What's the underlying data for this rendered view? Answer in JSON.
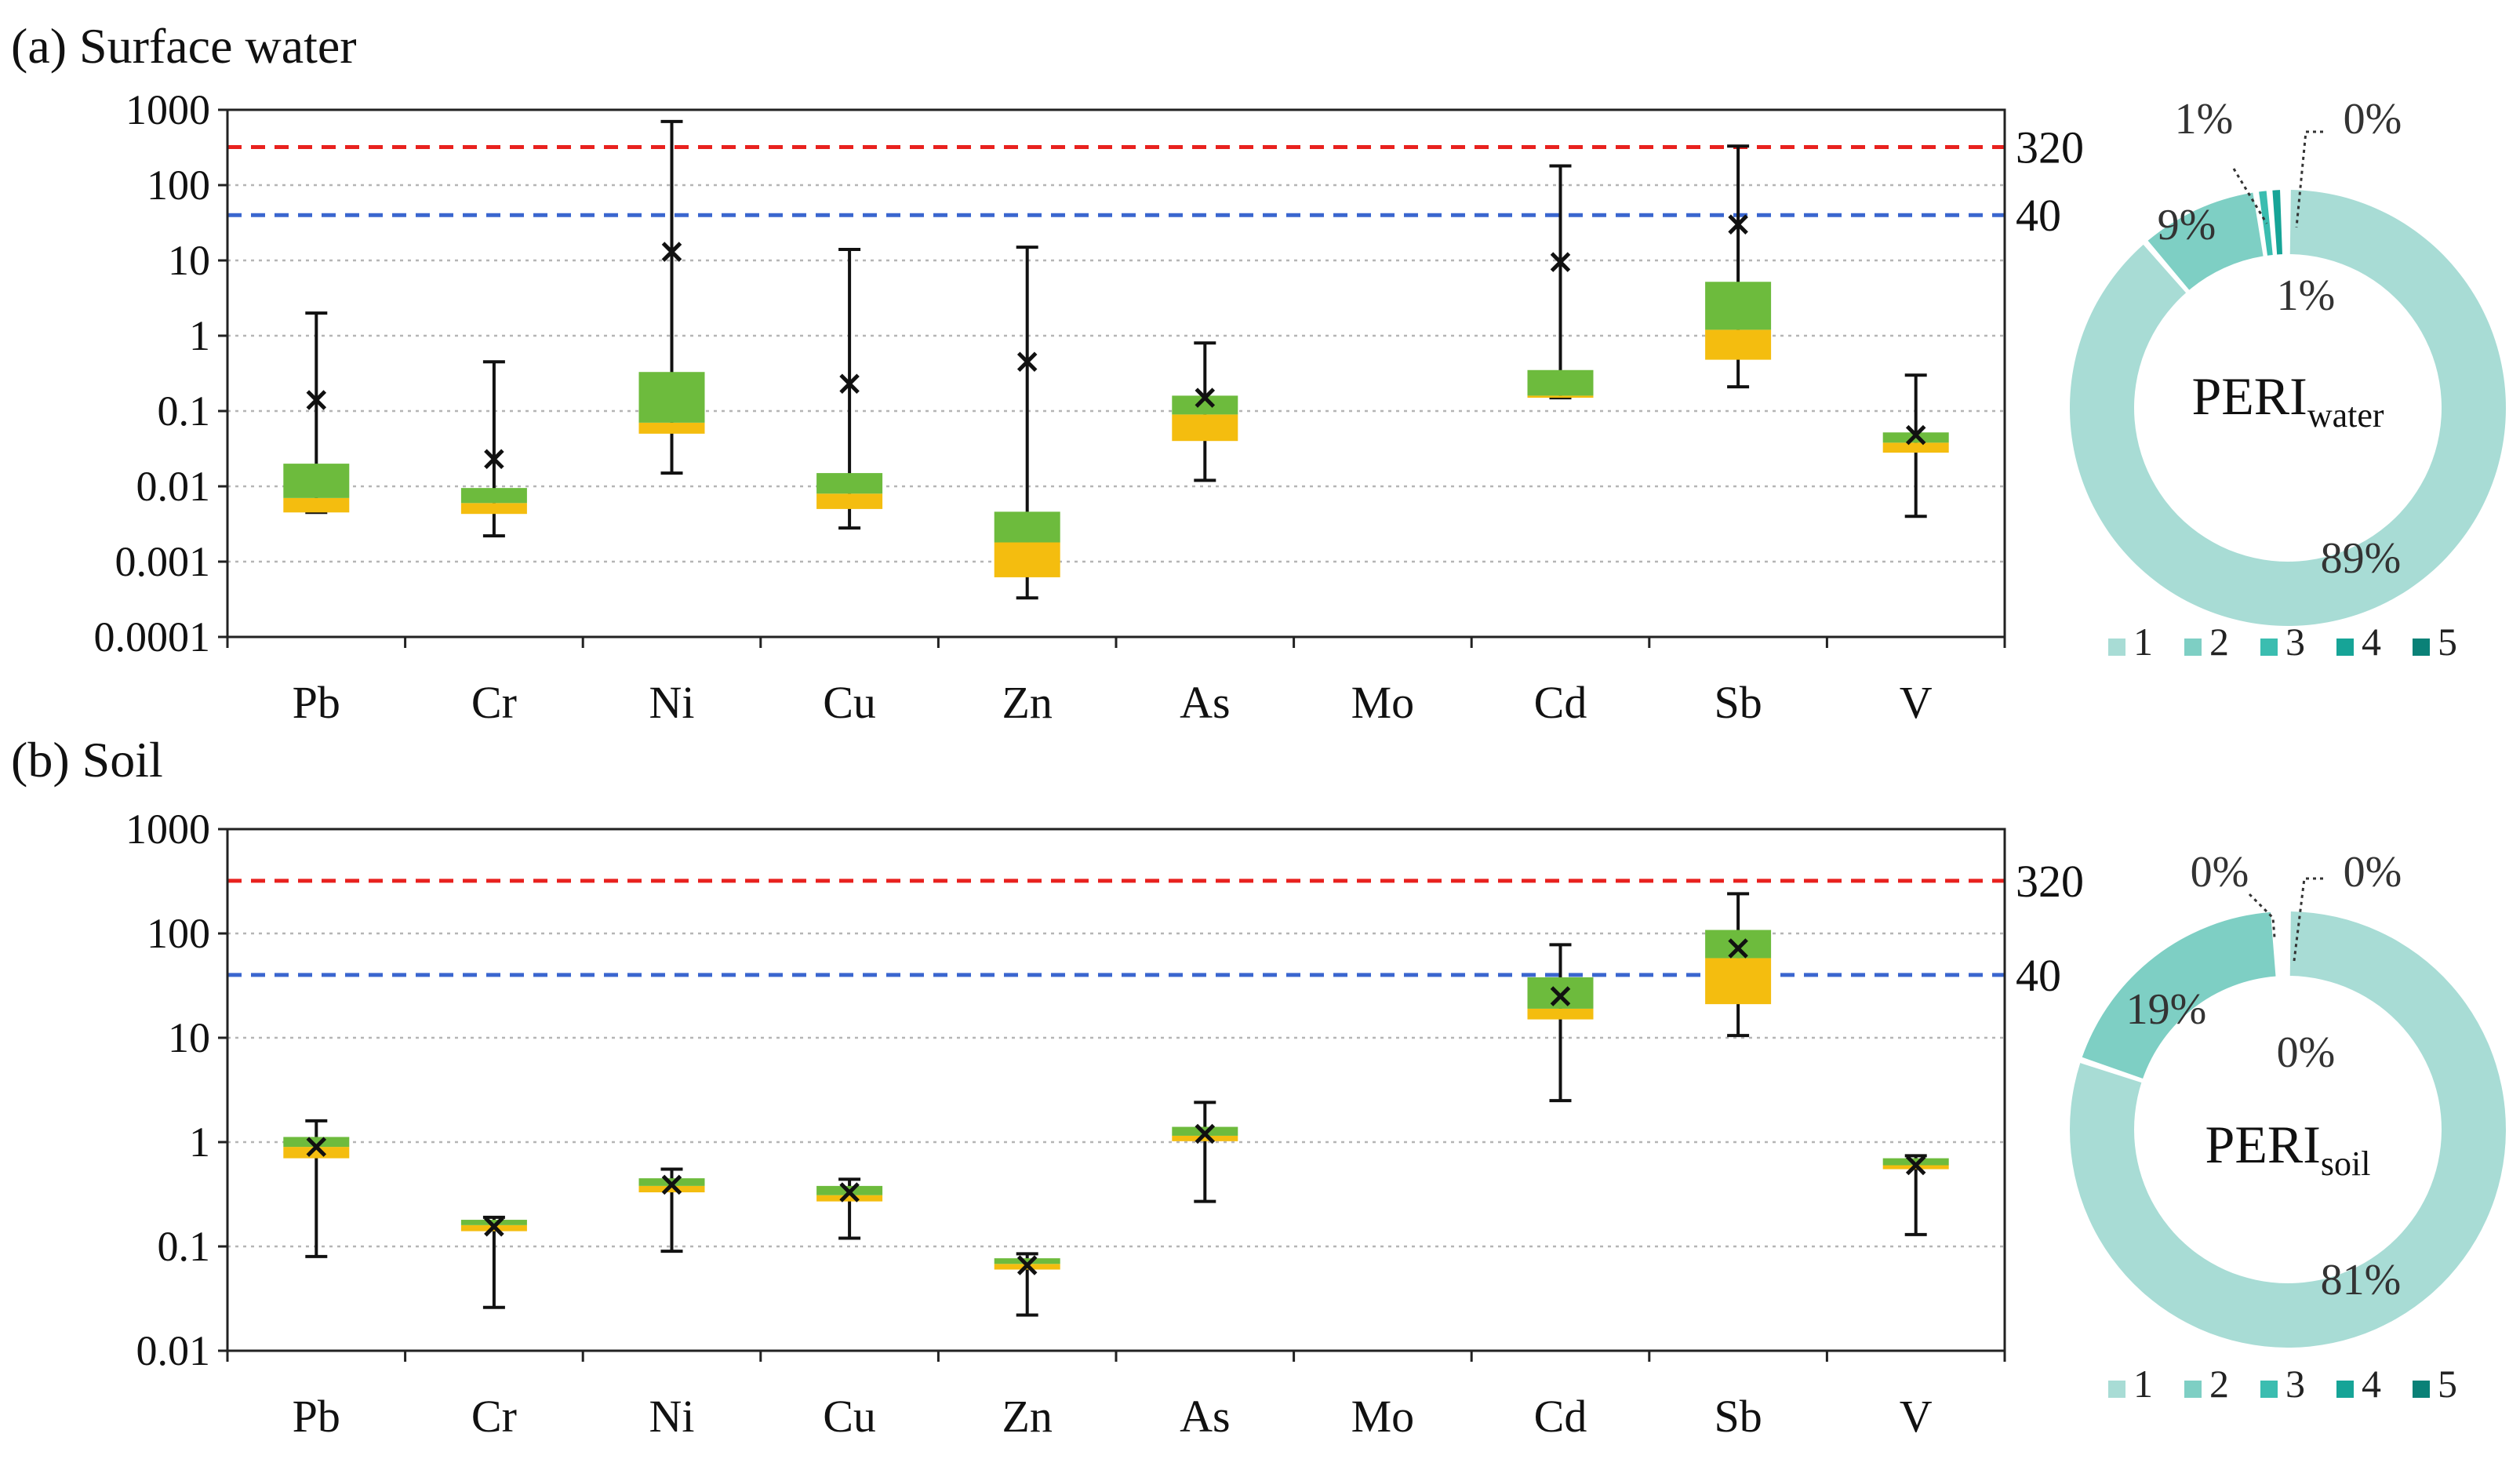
{
  "colors": {
    "box_upper": "#6dbb3d",
    "box_lower": "#f4bd0f",
    "red_line": "#e8211e",
    "blue_line": "#3a66cf",
    "grid": "#b5b5b5",
    "pie": [
      "#a8dcd5",
      "#7ecfc4",
      "#3bbdb0",
      "#16a497",
      "#0a8177"
    ]
  },
  "chart_data": [
    {
      "id": "water",
      "type": "box",
      "title": "(a) Surface water",
      "yscale": "log",
      "ylim": [
        0.0001,
        1000
      ],
      "yticks": [
        "0.0001",
        "0.001",
        "0.01",
        "0.1",
        "1",
        "10",
        "100",
        "1000"
      ],
      "categories": [
        "Pb",
        "Cr",
        "Ni",
        "Cu",
        "Zn",
        "As",
        "Mo",
        "Cd",
        "Sb",
        "V"
      ],
      "thresholds": [
        {
          "label": "320",
          "value": 320,
          "color": "red"
        },
        {
          "label": "40",
          "value": 40,
          "color": "blue"
        }
      ],
      "boxes": [
        {
          "cat": "Pb",
          "min": 0.0045,
          "q1": 0.0045,
          "median": 0.007,
          "q3": 0.02,
          "max": 2.0,
          "mean": 0.14
        },
        {
          "cat": "Cr",
          "min": 0.0022,
          "q1": 0.0043,
          "median": 0.006,
          "q3": 0.0095,
          "max": 0.45,
          "mean": 0.023
        },
        {
          "cat": "Ni",
          "min": 0.015,
          "q1": 0.05,
          "median": 0.07,
          "q3": 0.33,
          "max": 700,
          "mean": 13
        },
        {
          "cat": "Cu",
          "min": 0.0028,
          "q1": 0.005,
          "median": 0.008,
          "q3": 0.015,
          "max": 14,
          "mean": 0.23
        },
        {
          "cat": "Zn",
          "min": 0.00033,
          "q1": 0.00062,
          "median": 0.0018,
          "q3": 0.0046,
          "max": 15,
          "mean": 0.45
        },
        {
          "cat": "As",
          "min": 0.012,
          "q1": 0.04,
          "median": 0.09,
          "q3": 0.16,
          "max": 0.8,
          "mean": 0.15
        },
        {
          "cat": "Mo",
          "min": null,
          "q1": null,
          "median": null,
          "q3": null,
          "max": null,
          "mean": null
        },
        {
          "cat": "Cd",
          "min": 0.15,
          "q1": 0.15,
          "median": 0.16,
          "q3": 0.35,
          "max": 180,
          "mean": 9.5
        },
        {
          "cat": "Sb",
          "min": 0.21,
          "q1": 0.48,
          "median": 1.2,
          "q3": 5.2,
          "max": 330,
          "mean": 30
        },
        {
          "cat": "V",
          "min": 0.004,
          "q1": 0.028,
          "median": 0.038,
          "q3": 0.052,
          "max": 0.3,
          "mean": 0.048
        }
      ],
      "pie": {
        "label_main": "PERI",
        "label_sub": "water",
        "values": [
          89,
          9,
          1,
          1,
          0
        ],
        "labels": [
          "89%",
          "9%",
          "1%",
          "1%",
          "0%"
        ],
        "legend": [
          "1",
          "2",
          "3",
          "4",
          "5"
        ]
      }
    },
    {
      "id": "soil",
      "type": "box",
      "title": "(b) Soil",
      "yscale": "log",
      "ylim": [
        0.01,
        1000
      ],
      "yticks": [
        "0.01",
        "0.1",
        "1",
        "10",
        "100",
        "1000"
      ],
      "categories": [
        "Pb",
        "Cr",
        "Ni",
        "Cu",
        "Zn",
        "As",
        "Mo",
        "Cd",
        "Sb",
        "V"
      ],
      "thresholds": [
        {
          "label": "320",
          "value": 320,
          "color": "red"
        },
        {
          "label": "40",
          "value": 40,
          "color": "blue"
        }
      ],
      "boxes": [
        {
          "cat": "Pb",
          "min": 0.08,
          "q1": 0.7,
          "median": 0.9,
          "q3": 1.12,
          "max": 1.6,
          "mean": 0.9
        },
        {
          "cat": "Cr",
          "min": 0.026,
          "q1": 0.14,
          "median": 0.16,
          "q3": 0.18,
          "max": 0.19,
          "mean": 0.155
        },
        {
          "cat": "Ni",
          "min": 0.09,
          "q1": 0.33,
          "median": 0.38,
          "q3": 0.45,
          "max": 0.55,
          "mean": 0.39
        },
        {
          "cat": "Cu",
          "min": 0.12,
          "q1": 0.27,
          "median": 0.31,
          "q3": 0.38,
          "max": 0.44,
          "mean": 0.33
        },
        {
          "cat": "Zn",
          "min": 0.022,
          "q1": 0.06,
          "median": 0.068,
          "q3": 0.077,
          "max": 0.085,
          "mean": 0.066
        },
        {
          "cat": "As",
          "min": 0.27,
          "q1": 1.02,
          "median": 1.15,
          "q3": 1.4,
          "max": 2.4,
          "mean": 1.2
        },
        {
          "cat": "Mo",
          "min": null,
          "q1": null,
          "median": null,
          "q3": null,
          "max": null,
          "mean": null
        },
        {
          "cat": "Cd",
          "min": 2.5,
          "q1": 15,
          "median": 19,
          "q3": 38,
          "max": 78,
          "mean": 25
        },
        {
          "cat": "Sb",
          "min": 10.5,
          "q1": 21,
          "median": 58,
          "q3": 108,
          "max": 240,
          "mean": 72
        },
        {
          "cat": "V",
          "min": 0.13,
          "q1": 0.55,
          "median": 0.6,
          "q3": 0.7,
          "max": 0.74,
          "mean": 0.6
        }
      ],
      "pie": {
        "label_main": "PERI",
        "label_sub": "soil",
        "values": [
          81,
          19,
          0,
          0,
          0
        ],
        "labels": [
          "81%",
          "19%",
          "0%",
          "0%",
          "0%"
        ],
        "legend": [
          "1",
          "2",
          "3",
          "4",
          "5"
        ]
      }
    }
  ]
}
